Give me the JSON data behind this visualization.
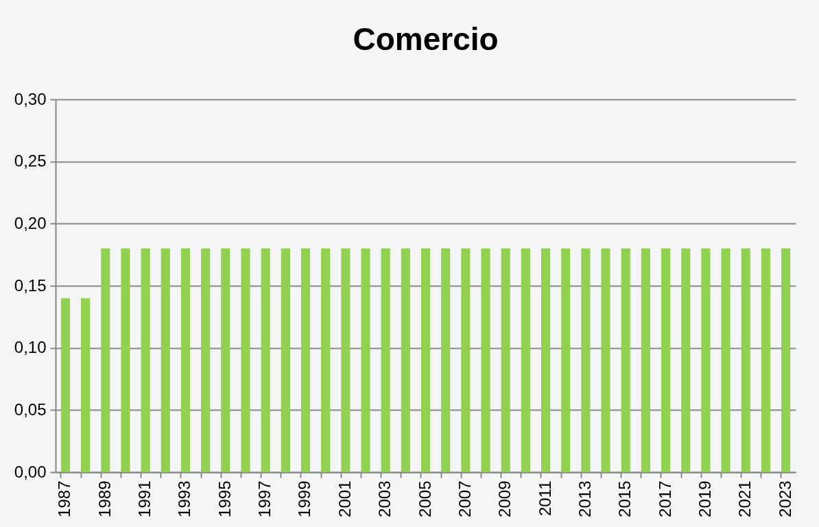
{
  "chart_data": {
    "type": "bar",
    "title": "Comercio",
    "categories": [
      "1987",
      null,
      "1989",
      null,
      "1991",
      null,
      "1993",
      null,
      "1995",
      null,
      "1997",
      null,
      "1999",
      null,
      "2001",
      null,
      "2003",
      null,
      "2005",
      null,
      "2007",
      null,
      "2009",
      null,
      "2011",
      null,
      "2013",
      null,
      "2015",
      null,
      "2017",
      null,
      "2019",
      null,
      "2021",
      null,
      "2023"
    ],
    "values": [
      0.14,
      0.14,
      0.18,
      0.18,
      0.18,
      0.18,
      0.18,
      0.18,
      0.18,
      0.18,
      0.18,
      0.18,
      0.18,
      0.18,
      0.18,
      0.18,
      0.18,
      0.18,
      0.18,
      0.18,
      0.18,
      0.18,
      0.18,
      0.18,
      0.18,
      0.18,
      0.18,
      0.18,
      0.18,
      0.18,
      0.18,
      0.18,
      0.18,
      0.18,
      0.18,
      0.18,
      0.18
    ],
    "color": "#92d050",
    "ylim": [
      0,
      0.3
    ],
    "yticks": [
      {
        "value": 0,
        "label": "0,00"
      },
      {
        "value": 0.05,
        "label": "0,05"
      },
      {
        "value": 0.1,
        "label": "0,10"
      },
      {
        "value": 0.15,
        "label": "0,15"
      },
      {
        "value": 0.2,
        "label": "0,20"
      },
      {
        "value": 0.25,
        "label": "0,25"
      },
      {
        "value": 0.3,
        "label": "0,30"
      }
    ],
    "grid": "y"
  }
}
